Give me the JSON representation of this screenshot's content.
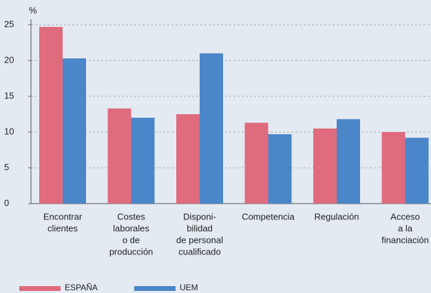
{
  "chart_data": {
    "type": "bar",
    "y_label": "%",
    "categories": [
      [
        "Encontrar",
        "clientes"
      ],
      [
        "Costes",
        "laborales",
        "o de",
        "producción"
      ],
      [
        "Disponi-",
        "bilidad",
        "de personal",
        "cualificado"
      ],
      [
        "Competencia"
      ],
      [
        "Regulación"
      ],
      [
        "Acceso",
        "a la",
        "financiación"
      ]
    ],
    "series": [
      {
        "name": "ESPAÑA",
        "color": "#e06b7d",
        "values": [
          24.7,
          13.3,
          12.5,
          11.3,
          10.5,
          10.0
        ]
      },
      {
        "name": "UEM",
        "color": "#4a86c8",
        "values": [
          20.3,
          12.0,
          21.0,
          9.7,
          11.8,
          9.2
        ]
      }
    ],
    "ylim": [
      0,
      25
    ],
    "yticks": [
      0,
      5,
      10,
      15,
      20,
      25
    ],
    "grid": true
  }
}
